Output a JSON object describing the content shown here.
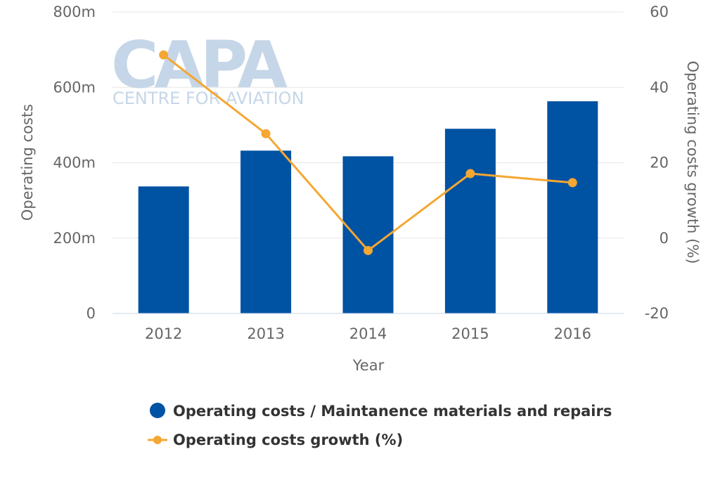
{
  "watermark": {
    "brand": "CAPA",
    "tagline": "CENTRE FOR AVIATION"
  },
  "chart_data": {
    "type": "bar",
    "title": "",
    "categories": [
      "2012",
      "2013",
      "2014",
      "2015",
      "2016"
    ],
    "xlabel": "Year",
    "y_left": {
      "label": "Operating costs",
      "min": 0,
      "max": 800,
      "ticks": [
        0,
        200,
        400,
        600,
        800
      ],
      "tick_labels": [
        "0",
        "200m",
        "400m",
        "600m",
        "800m"
      ]
    },
    "y_right": {
      "label": "Operating costs growth (%)",
      "min": -20,
      "max": 60,
      "ticks": [
        -20,
        0,
        20,
        40,
        60
      ],
      "tick_labels": [
        "-20",
        "0",
        "20",
        "40",
        "60"
      ]
    },
    "series": [
      {
        "name": "Operating costs / Maintanence materials and repairs",
        "type": "bar",
        "axis": "left",
        "color": "#0052a3",
        "values": [
          337,
          432,
          417,
          490,
          563
        ]
      },
      {
        "name": "Operating costs growth (%)",
        "type": "line",
        "axis": "right",
        "color": "#f5a732",
        "values": [
          48.6,
          27.7,
          -3.3,
          17.1,
          14.7
        ]
      }
    ],
    "grid": true,
    "legend_position": "bottom"
  }
}
